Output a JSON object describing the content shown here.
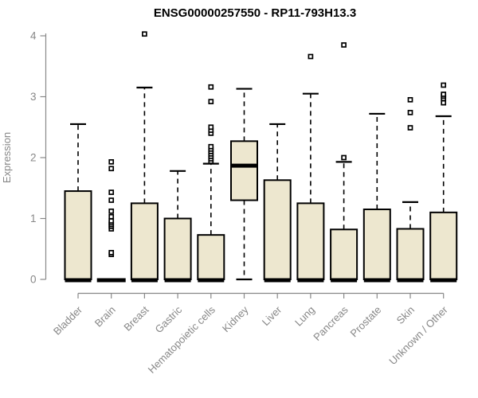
{
  "colors": {
    "box_fill": "#EDE7CF",
    "box_border": "#000000",
    "median": "#000000",
    "whisker": "#000000",
    "outlier": "#000000",
    "axis": "#888888",
    "tick_label": "#878787",
    "title": "#000000",
    "background": "#ffffff"
  },
  "chart_data": {
    "type": "boxplot",
    "title": "ENSG00000257550 - RP11-793H13.3",
    "xlabel": "",
    "ylabel": "Expression",
    "ylim": [
      0,
      4
    ],
    "yticks": [
      0,
      1,
      2,
      3,
      4
    ],
    "grid": false,
    "categories": [
      "Bladder",
      "Brain",
      "Breast",
      "Gastric",
      "Hematopoietic cells",
      "Kidney",
      "Liver",
      "Lung",
      "Pancreas",
      "Prostate",
      "Skin",
      "Unknown / Other"
    ],
    "boxes": [
      {
        "category": "Bladder",
        "min": 0,
        "q1": 0,
        "median": 0,
        "q3": 1.45,
        "max": 2.55,
        "outliers": []
      },
      {
        "category": "Brain",
        "min": 0,
        "q1": 0,
        "median": 0,
        "q3": 0,
        "max": 0,
        "outliers": [
          0.41,
          0.44,
          0.83,
          0.87,
          0.9,
          0.93,
          0.96,
          1.03,
          1.12,
          1.3,
          1.43,
          1.82,
          1.93
        ]
      },
      {
        "category": "Breast",
        "min": 0,
        "q1": 0,
        "median": 0,
        "q3": 1.25,
        "max": 3.15,
        "outliers": [
          4.03
        ]
      },
      {
        "category": "Gastric",
        "min": 0,
        "q1": 0,
        "median": 0,
        "q3": 1.0,
        "max": 1.78,
        "outliers": []
      },
      {
        "category": "Hematopoietic cells",
        "min": 0,
        "q1": 0,
        "median": 0,
        "q3": 0.73,
        "max": 1.9,
        "outliers": [
          1.94,
          1.98,
          2.02,
          2.06,
          2.1,
          2.14,
          2.18,
          2.4,
          2.45,
          2.5,
          2.92,
          3.16
        ]
      },
      {
        "category": "Kidney",
        "min": 0,
        "q1": 1.3,
        "median": 1.88,
        "q3": 2.27,
        "max": 3.13,
        "outliers": []
      },
      {
        "category": "Liver",
        "min": 0,
        "q1": 0,
        "median": 0,
        "q3": 1.63,
        "max": 2.55,
        "outliers": []
      },
      {
        "category": "Lung",
        "min": 0,
        "q1": 0,
        "median": 0,
        "q3": 1.25,
        "max": 3.05,
        "outliers": [
          3.66
        ]
      },
      {
        "category": "Pancreas",
        "min": 0,
        "q1": 0,
        "median": 0,
        "q3": 0.82,
        "max": 1.93,
        "outliers": [
          2.0,
          3.85
        ]
      },
      {
        "category": "Prostate",
        "min": 0,
        "q1": 0,
        "median": 0,
        "q3": 1.15,
        "max": 2.72,
        "outliers": []
      },
      {
        "category": "Skin",
        "min": 0,
        "q1": 0,
        "median": 0,
        "q3": 0.83,
        "max": 1.27,
        "outliers": [
          2.49,
          2.74,
          2.95
        ]
      },
      {
        "category": "Unknown / Other",
        "min": 0,
        "q1": 0,
        "median": 0,
        "q3": 1.1,
        "max": 2.68,
        "outliers": [
          2.9,
          2.97,
          3.01,
          3.04,
          3.19
        ]
      }
    ]
  }
}
